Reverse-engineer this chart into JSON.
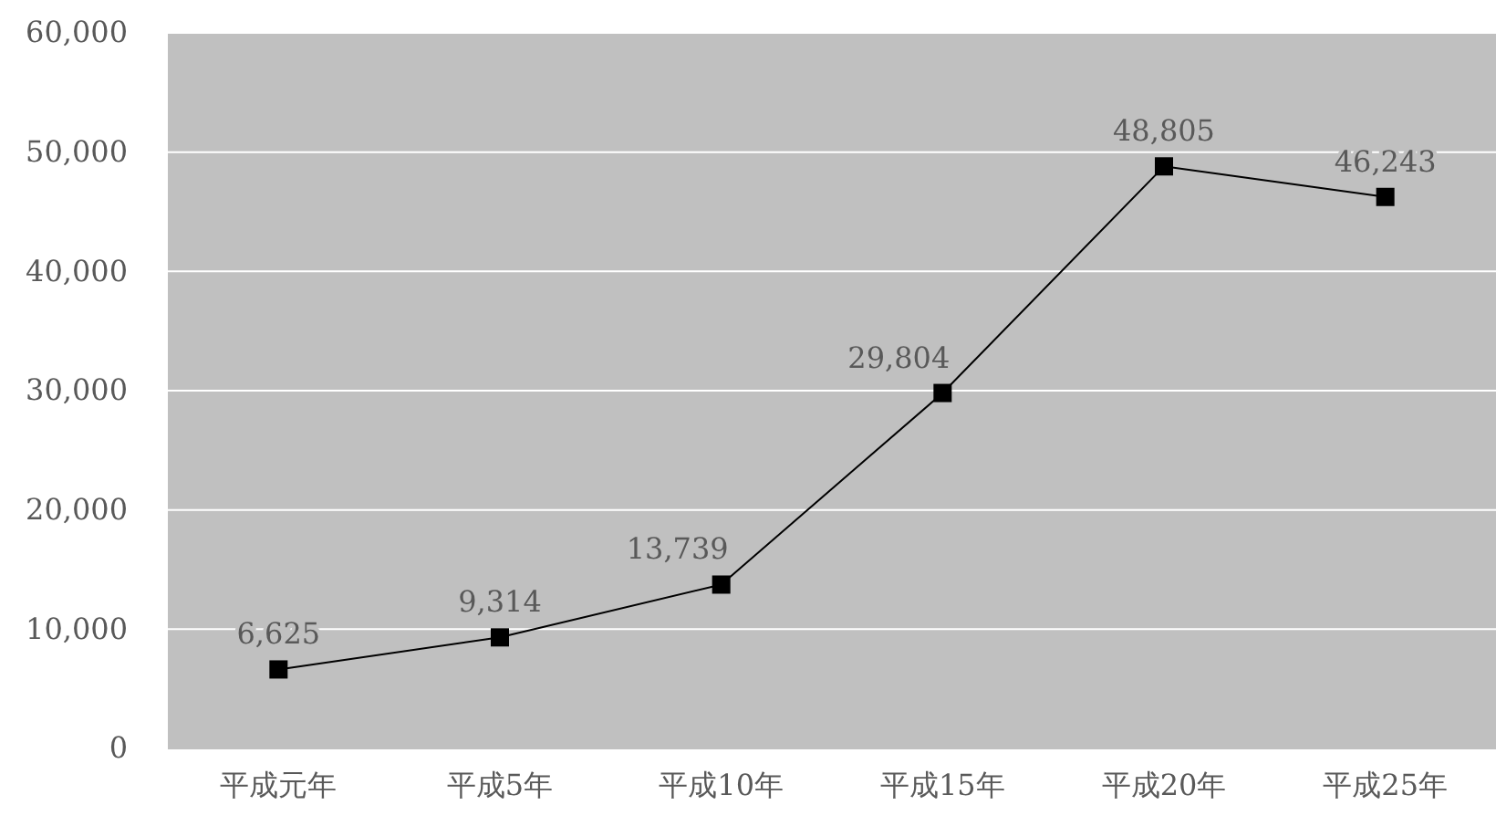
{
  "chart_data": {
    "type": "line",
    "categories": [
      "平成元年",
      "平成5年",
      "平成10年",
      "平成15年",
      "平成20年",
      "平成25年"
    ],
    "series": [
      {
        "color": "#000000",
        "values": [
          6625,
          9314,
          13739,
          29804,
          48805,
          46243
        ],
        "value_labels": [
          "6,625",
          "9,314",
          "13,739",
          "29,804",
          "48,805",
          "46,243"
        ]
      }
    ],
    "ylim": [
      0,
      60000
    ],
    "yticks": [
      {
        "value": 0,
        "label": "0"
      },
      {
        "value": 10000,
        "label": "10,000"
      },
      {
        "value": 20000,
        "label": "20,000"
      },
      {
        "value": 30000,
        "label": "30,000"
      },
      {
        "value": 40000,
        "label": "40,000"
      },
      {
        "value": 50000,
        "label": "50,000"
      },
      {
        "value": 60000,
        "label": "60,000"
      }
    ],
    "grid": "y",
    "marker": "square",
    "line_style": "solid"
  }
}
